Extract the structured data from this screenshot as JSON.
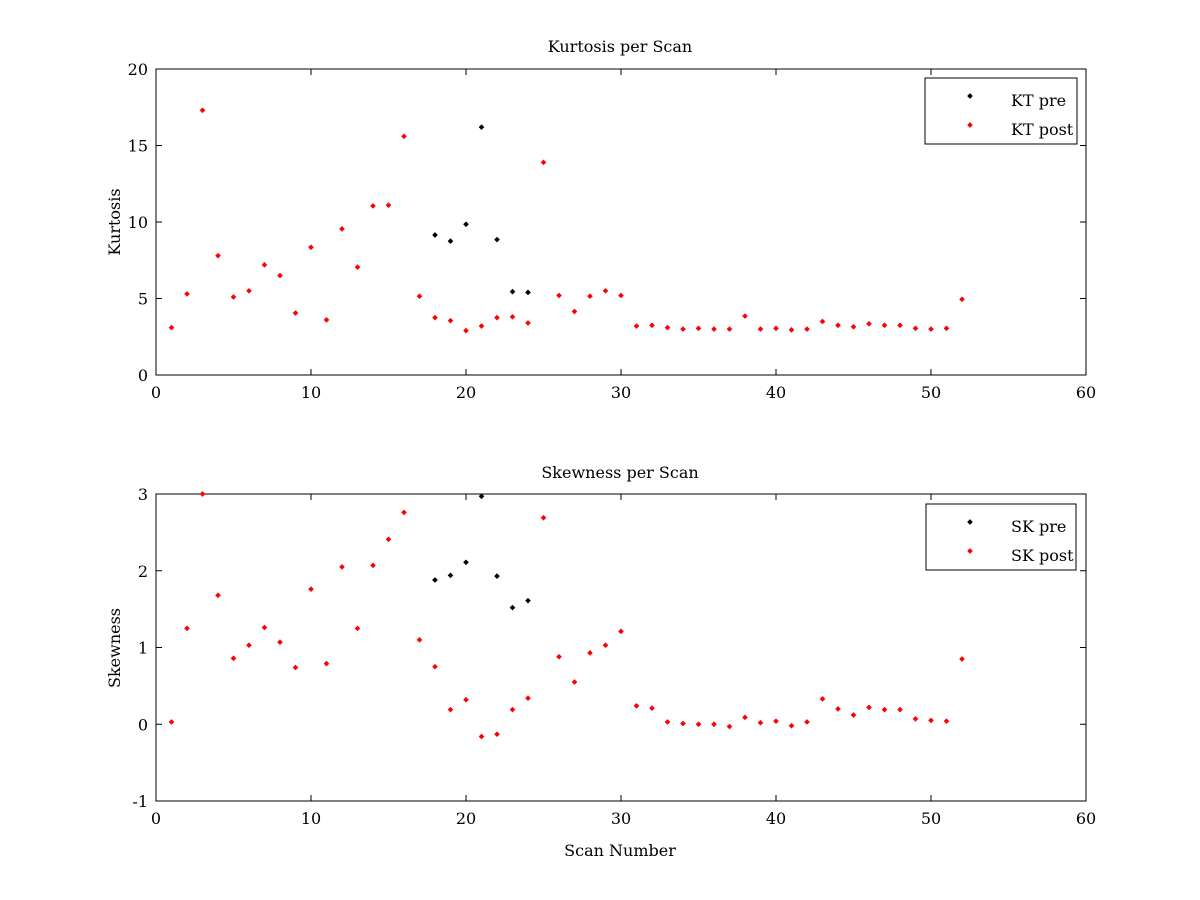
{
  "chart_data": [
    {
      "type": "scatter",
      "title": "Kurtosis per Scan",
      "xlabel": "",
      "ylabel": "Kurtosis",
      "xlim": [
        0,
        60
      ],
      "ylim": [
        0,
        20
      ],
      "xticks": [
        0,
        10,
        20,
        30,
        40,
        50,
        60
      ],
      "yticks": [
        0,
        5,
        10,
        15,
        20
      ],
      "grid": false,
      "legend_position": "top-right",
      "series": [
        {
          "name": "KT pre",
          "color": "#000000",
          "x": [
            18,
            19,
            20,
            21,
            22,
            23,
            24
          ],
          "y": [
            9.15,
            8.75,
            9.85,
            16.2,
            8.85,
            5.45,
            5.4
          ]
        },
        {
          "name": "KT post",
          "color": "#ff0000",
          "x": [
            1,
            2,
            3,
            4,
            5,
            6,
            7,
            8,
            9,
            10,
            11,
            12,
            13,
            14,
            15,
            16,
            17,
            18,
            19,
            20,
            21,
            22,
            23,
            24,
            25,
            26,
            27,
            28,
            29,
            30,
            31,
            32,
            33,
            34,
            35,
            36,
            37,
            38,
            39,
            40,
            41,
            42,
            43,
            44,
            45,
            46,
            47,
            48,
            49,
            50,
            51,
            52
          ],
          "y": [
            3.1,
            5.3,
            17.3,
            7.8,
            5.1,
            5.5,
            7.2,
            6.5,
            4.05,
            8.35,
            3.6,
            9.55,
            7.05,
            11.05,
            11.1,
            15.6,
            5.15,
            3.75,
            3.55,
            2.9,
            3.2,
            3.75,
            3.8,
            3.4,
            13.9,
            5.2,
            4.15,
            5.15,
            5.5,
            5.2,
            3.2,
            3.25,
            3.1,
            3.0,
            3.05,
            3.0,
            3.0,
            3.85,
            3.0,
            3.05,
            2.95,
            3.0,
            3.5,
            3.25,
            3.15,
            3.35,
            3.25,
            3.25,
            3.05,
            3.0,
            3.05,
            4.95
          ]
        }
      ]
    },
    {
      "type": "scatter",
      "title": "Skewness per Scan",
      "xlabel": "Scan Number",
      "ylabel": "Skewness",
      "xlim": [
        0,
        60
      ],
      "ylim": [
        -1,
        3
      ],
      "xticks": [
        0,
        10,
        20,
        30,
        40,
        50,
        60
      ],
      "yticks": [
        -1,
        0,
        1,
        2,
        3
      ],
      "grid": false,
      "legend_position": "top-right",
      "series": [
        {
          "name": "SK pre",
          "color": "#000000",
          "x": [
            18,
            19,
            20,
            21,
            22,
            23,
            24
          ],
          "y": [
            1.88,
            1.94,
            2.11,
            2.97,
            1.93,
            1.52,
            1.61
          ]
        },
        {
          "name": "SK post",
          "color": "#ff0000",
          "x": [
            1,
            2,
            3,
            4,
            5,
            6,
            7,
            8,
            9,
            10,
            11,
            12,
            13,
            14,
            15,
            16,
            17,
            18,
            19,
            20,
            21,
            22,
            23,
            24,
            25,
            26,
            27,
            28,
            29,
            30,
            31,
            32,
            33,
            34,
            35,
            36,
            37,
            38,
            39,
            40,
            41,
            42,
            43,
            44,
            45,
            46,
            47,
            48,
            49,
            50,
            51,
            52
          ],
          "y": [
            0.03,
            1.25,
            3.0,
            1.68,
            0.86,
            1.03,
            1.26,
            1.07,
            0.74,
            1.76,
            0.79,
            2.05,
            1.25,
            2.07,
            2.41,
            2.76,
            1.1,
            0.75,
            0.19,
            0.32,
            -0.16,
            -0.13,
            0.19,
            0.34,
            2.69,
            0.88,
            0.55,
            0.93,
            1.03,
            1.21,
            0.24,
            0.21,
            0.03,
            0.01,
            0.0,
            0.0,
            -0.03,
            0.09,
            0.02,
            0.04,
            -0.02,
            0.03,
            0.33,
            0.2,
            0.12,
            0.22,
            0.19,
            0.19,
            0.07,
            0.05,
            0.04,
            0.85
          ]
        }
      ]
    }
  ]
}
